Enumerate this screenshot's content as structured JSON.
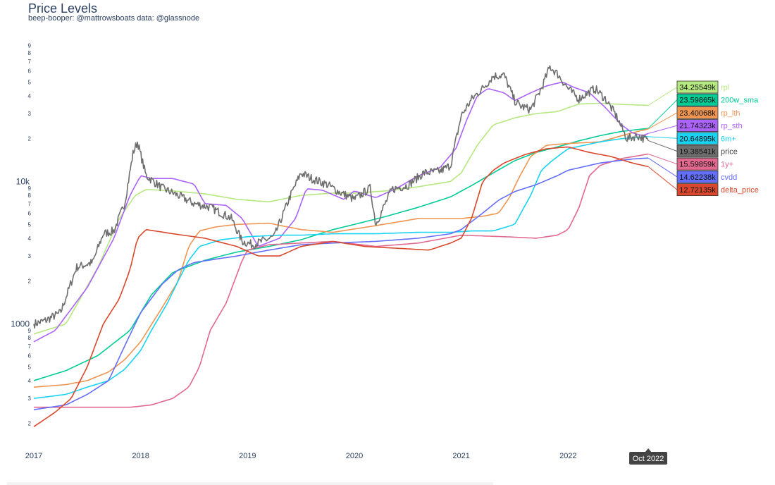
{
  "title": "Price Levels",
  "subtitle": "beep-booper: @mattrowsboats data: @glassnode",
  "chart_data": {
    "type": "line",
    "yscale": "log",
    "ylim": [
      170,
      95000
    ],
    "xlim": [
      2017.0,
      2023.0
    ],
    "x_ticks": [
      {
        "x": 2017,
        "label": "2017"
      },
      {
        "x": 2018,
        "label": "2018"
      },
      {
        "x": 2019,
        "label": "2019"
      },
      {
        "x": 2020,
        "label": "2020"
      },
      {
        "x": 2021,
        "label": "2021"
      },
      {
        "x": 2022,
        "label": "2022"
      }
    ],
    "y_major_ticks": [
      {
        "v": 1000,
        "label": "1000"
      },
      {
        "v": 10000,
        "label": "10k"
      }
    ],
    "y_minor_ticks": [
      {
        "v": 200,
        "label": "2"
      },
      {
        "v": 300,
        "label": "3"
      },
      {
        "v": 400,
        "label": "4"
      },
      {
        "v": 500,
        "label": "5"
      },
      {
        "v": 600,
        "label": "6"
      },
      {
        "v": 700,
        "label": "7"
      },
      {
        "v": 800,
        "label": "8"
      },
      {
        "v": 900,
        "label": "9"
      },
      {
        "v": 2000,
        "label": "2"
      },
      {
        "v": 3000,
        "label": "3"
      },
      {
        "v": 4000,
        "label": "4"
      },
      {
        "v": 5000,
        "label": "5"
      },
      {
        "v": 6000,
        "label": "6"
      },
      {
        "v": 7000,
        "label": "7"
      },
      {
        "v": 8000,
        "label": "8"
      },
      {
        "v": 9000,
        "label": "9"
      },
      {
        "v": 20000,
        "label": "2"
      },
      {
        "v": 30000,
        "label": "3"
      },
      {
        "v": 40000,
        "label": "4"
      },
      {
        "v": 50000,
        "label": "5"
      },
      {
        "v": 60000,
        "label": "6"
      },
      {
        "v": 70000,
        "label": "7"
      },
      {
        "v": 80000,
        "label": "8"
      },
      {
        "v": 90000,
        "label": "9"
      }
    ],
    "hover_x": 2022.75,
    "hover_label": "Oct 2022",
    "series": [
      {
        "name": "rpl",
        "color": "#b6e880",
        "value_label": "34.25549k",
        "x": [
          2017.0,
          2017.3,
          2017.6,
          2017.8,
          2017.95,
          2018.05,
          2018.3,
          2018.6,
          2018.9,
          2019.2,
          2019.5,
          2019.8,
          2020.0,
          2020.3,
          2020.6,
          2020.9,
          2021.0,
          2021.15,
          2021.3,
          2021.5,
          2021.7,
          2021.9,
          2022.1,
          2022.3,
          2022.5,
          2022.7,
          2022.75
        ],
        "y": [
          850,
          1000,
          2500,
          5500,
          8000,
          8800,
          8600,
          8200,
          7500,
          7200,
          8000,
          8300,
          8300,
          8600,
          9200,
          10000,
          11500,
          18000,
          25000,
          28000,
          30000,
          31000,
          35000,
          35500,
          34800,
          34400,
          34255
        ]
      },
      {
        "name": "200w_sma",
        "color": "#00cc96",
        "value_label": "23.59865k",
        "x": [
          2017.0,
          2017.3,
          2017.6,
          2017.9,
          2018.1,
          2018.3,
          2018.6,
          2018.9,
          2019.2,
          2019.5,
          2019.8,
          2020.0,
          2020.3,
          2020.6,
          2020.9,
          2021.1,
          2021.3,
          2021.5,
          2021.7,
          2021.9,
          2022.1,
          2022.3,
          2022.5,
          2022.7,
          2022.75
        ],
        "y": [
          400,
          470,
          600,
          900,
          1600,
          2300,
          2800,
          3200,
          3500,
          3900,
          4600,
          5000,
          5700,
          6600,
          7800,
          9400,
          11500,
          14000,
          16000,
          17500,
          19300,
          21000,
          22500,
          23400,
          23598
        ]
      },
      {
        "name": "rp_lth",
        "color": "#ef9552",
        "value_label": "23.40068k",
        "x": [
          2017.0,
          2017.3,
          2017.5,
          2017.7,
          2017.85,
          2018.0,
          2018.2,
          2018.35,
          2018.45,
          2018.55,
          2018.7,
          2018.9,
          2019.2,
          2019.5,
          2019.8,
          2020.2,
          2020.6,
          2021.0,
          2021.2,
          2021.35,
          2021.45,
          2021.55,
          2021.65,
          2021.8,
          2022.0,
          2022.3,
          2022.6,
          2022.75
        ],
        "y": [
          360,
          375,
          400,
          460,
          560,
          750,
          1300,
          2000,
          3500,
          4500,
          4800,
          5000,
          5100,
          4600,
          4400,
          4900,
          5500,
          5500,
          5700,
          6000,
          7700,
          11000,
          15000,
          18000,
          18500,
          19000,
          22000,
          23400
        ]
      },
      {
        "name": "rp_sth",
        "color": "#ab63fa",
        "value_label": "21.74323k",
        "x": [
          2017.0,
          2017.2,
          2017.5,
          2017.75,
          2017.9,
          2018.0,
          2018.1,
          2018.3,
          2018.5,
          2018.6,
          2018.8,
          2018.95,
          2019.1,
          2019.3,
          2019.45,
          2019.55,
          2019.7,
          2019.9,
          2020.0,
          2020.2,
          2020.4,
          2020.6,
          2020.8,
          2020.95,
          2021.05,
          2021.15,
          2021.25,
          2021.4,
          2021.5,
          2021.65,
          2021.8,
          2021.95,
          2022.05,
          2022.2,
          2022.35,
          2022.5,
          2022.6,
          2022.7,
          2022.75
        ],
        "y": [
          750,
          900,
          1800,
          4000,
          8000,
          11000,
          10500,
          10500,
          9600,
          7000,
          6800,
          5500,
          3500,
          4000,
          5500,
          8900,
          8700,
          7500,
          8600,
          7700,
          9000,
          11000,
          12500,
          17000,
          27000,
          40000,
          45000,
          42000,
          37000,
          42000,
          47000,
          50000,
          46000,
          42000,
          33000,
          25000,
          22000,
          21000,
          21743
        ]
      },
      {
        "name": "6m+",
        "color": "#19d3f3",
        "value_label": "20.64895k",
        "x": [
          2017.0,
          2017.3,
          2017.5,
          2017.7,
          2017.85,
          2018.0,
          2018.1,
          2018.25,
          2018.35,
          2018.45,
          2018.55,
          2018.75,
          2019.0,
          2019.3,
          2019.5,
          2019.8,
          2020.2,
          2020.6,
          2020.9,
          2021.1,
          2021.3,
          2021.5,
          2021.65,
          2021.75,
          2021.85,
          2022.0,
          2022.3,
          2022.5,
          2022.75
        ],
        "y": [
          300,
          320,
          360,
          400,
          480,
          650,
          900,
          1400,
          2000,
          2800,
          3500,
          3900,
          4100,
          4200,
          4200,
          4300,
          4300,
          4400,
          4400,
          4500,
          4500,
          5000,
          8000,
          12000,
          14000,
          17000,
          19000,
          20000,
          20648
        ]
      },
      {
        "name": "price",
        "color": "#6e6e6e",
        "value_label": "19.38541k",
        "noisy": true,
        "x": [
          2017.0,
          2017.1,
          2017.25,
          2017.4,
          2017.55,
          2017.65,
          2017.75,
          2017.85,
          2017.93,
          2017.97,
          2018.05,
          2018.2,
          2018.35,
          2018.5,
          2018.65,
          2018.85,
          2018.95,
          2019.05,
          2019.25,
          2019.4,
          2019.5,
          2019.6,
          2019.75,
          2019.85,
          2020.0,
          2020.15,
          2020.2,
          2020.35,
          2020.5,
          2020.65,
          2020.8,
          2020.9,
          2021.0,
          2021.1,
          2021.2,
          2021.3,
          2021.4,
          2021.5,
          2021.55,
          2021.65,
          2021.75,
          2021.83,
          2021.9,
          2022.0,
          2022.1,
          2022.25,
          2022.35,
          2022.45,
          2022.55,
          2022.65,
          2022.75
        ],
        "y": [
          1000,
          1050,
          1200,
          2500,
          2700,
          4300,
          4500,
          7000,
          16000,
          19000,
          11000,
          9000,
          8000,
          7000,
          6600,
          5500,
          3800,
          3600,
          4100,
          7900,
          11500,
          10500,
          9500,
          8500,
          7500,
          9000,
          5000,
          8800,
          9400,
          11500,
          11800,
          13000,
          29000,
          38000,
          45000,
          55000,
          56000,
          37000,
          34000,
          32000,
          45000,
          64000,
          57000,
          45000,
          38000,
          45000,
          38000,
          29000,
          20000,
          21000,
          19385
        ]
      },
      {
        "name": "1y+",
        "color": "#e2688f",
        "value_label": "15.59859k",
        "x": [
          2017.0,
          2017.5,
          2017.9,
          2018.1,
          2018.3,
          2018.45,
          2018.55,
          2018.65,
          2018.8,
          2018.95,
          2019.0,
          2019.2,
          2019.5,
          2019.8,
          2020.2,
          2020.6,
          2021.0,
          2021.4,
          2021.7,
          2021.9,
          2022.0,
          2022.1,
          2022.2,
          2022.3,
          2022.5,
          2022.75
        ],
        "y": [
          260,
          260,
          260,
          270,
          300,
          360,
          500,
          900,
          1400,
          2800,
          3300,
          3600,
          3700,
          3800,
          3500,
          3700,
          4200,
          4100,
          4000,
          4200,
          4600,
          6500,
          11000,
          13000,
          14500,
          15598
        ]
      },
      {
        "name": "cvdd",
        "color": "#636efa",
        "value_label": "14.62238k",
        "x": [
          2017.0,
          2017.3,
          2017.5,
          2017.7,
          2017.85,
          2018.0,
          2018.2,
          2018.35,
          2018.5,
          2018.7,
          2018.9,
          2019.2,
          2019.5,
          2019.8,
          2020.2,
          2020.6,
          2020.9,
          2021.0,
          2021.2,
          2021.35,
          2021.5,
          2021.7,
          2021.9,
          2022.0,
          2022.3,
          2022.6,
          2022.75
        ],
        "y": [
          250,
          270,
          320,
          400,
          700,
          1200,
          1900,
          2400,
          2700,
          2850,
          3000,
          3300,
          3600,
          3700,
          3800,
          4000,
          4300,
          4600,
          6000,
          7400,
          8500,
          9500,
          11000,
          12000,
          13500,
          14400,
          14622
        ]
      },
      {
        "name": "delta_price",
        "color": "#d9482c",
        "value_label": "12.72135k",
        "x": [
          2017.0,
          2017.2,
          2017.35,
          2017.5,
          2017.65,
          2017.8,
          2017.9,
          2017.97,
          2018.05,
          2018.3,
          2018.6,
          2018.9,
          2019.1,
          2019.3,
          2019.5,
          2019.8,
          2020.1,
          2020.4,
          2020.7,
          2020.9,
          2021.0,
          2021.1,
          2021.2,
          2021.3,
          2021.4,
          2021.6,
          2021.8,
          2022.0,
          2022.2,
          2022.4,
          2022.6,
          2022.75
        ],
        "y": [
          190,
          240,
          300,
          500,
          1000,
          1500,
          2400,
          4000,
          4600,
          4300,
          4000,
          3500,
          3000,
          3000,
          3500,
          3800,
          3500,
          3400,
          3300,
          3700,
          4000,
          5600,
          10000,
          12000,
          13500,
          15500,
          17000,
          17500,
          16000,
          15000,
          13500,
          12721
        ]
      }
    ]
  }
}
